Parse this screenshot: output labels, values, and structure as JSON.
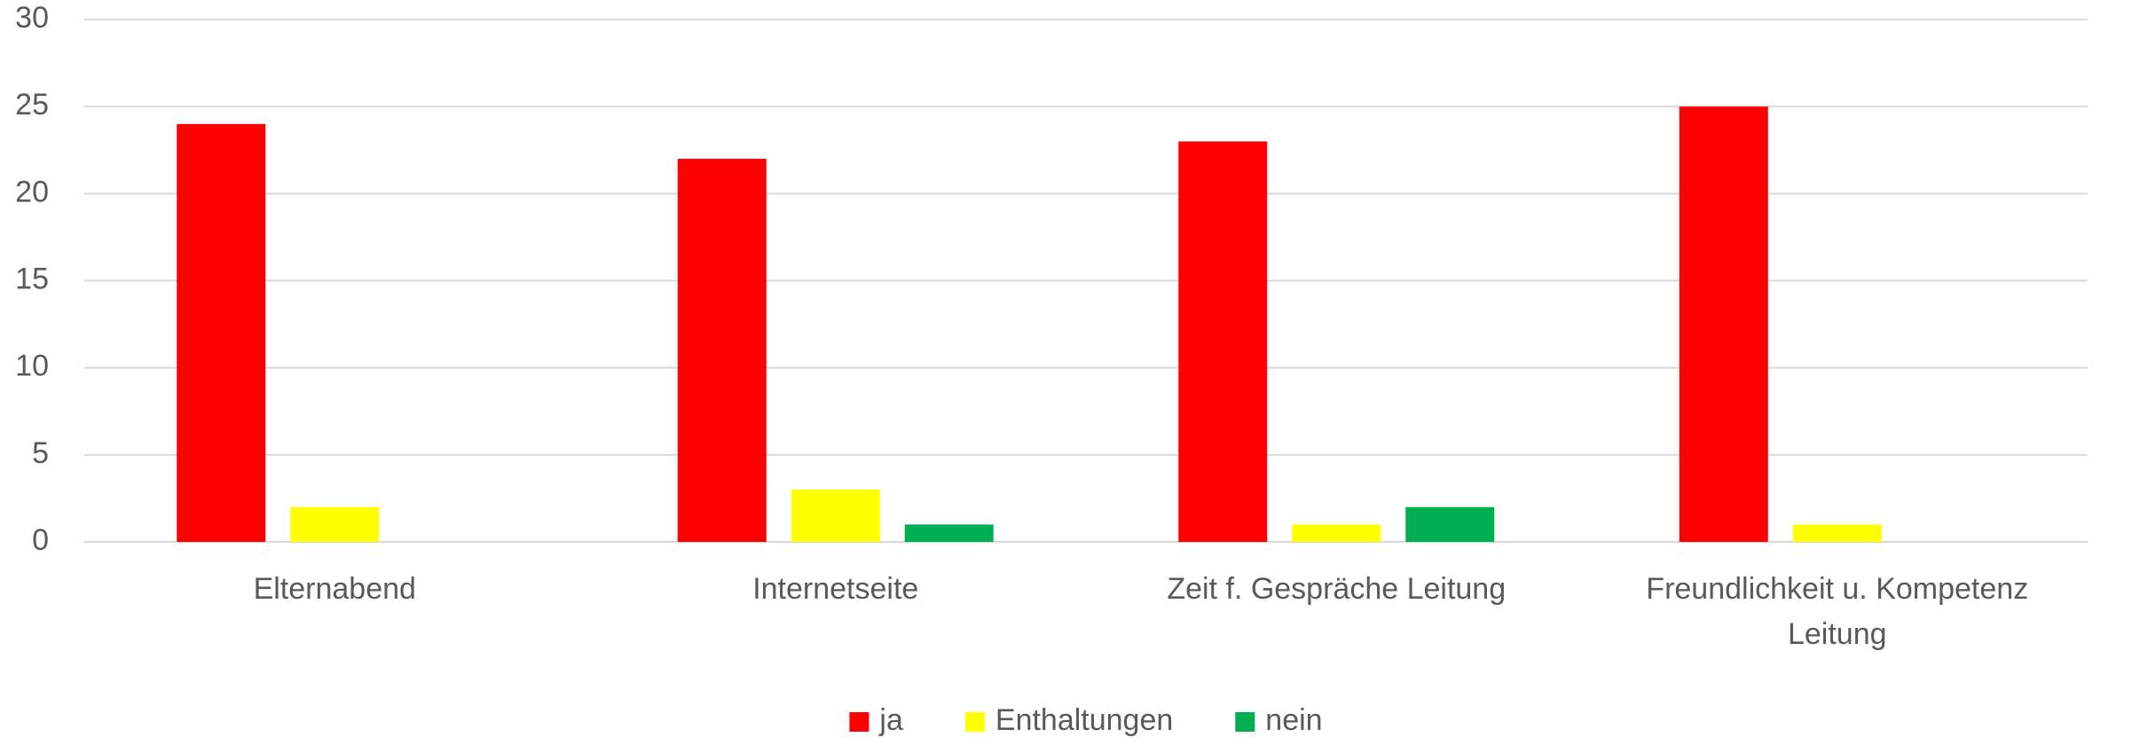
{
  "chart_data": {
    "type": "bar",
    "categories": [
      "Elternabend",
      "Internetseite",
      "Zeit f. Gespräche Leitung",
      "Freundlichkeit u. Kompetenz Leitung"
    ],
    "series": [
      {
        "name": "ja",
        "color": "#ff0000",
        "values": [
          24,
          22,
          23,
          25
        ]
      },
      {
        "name": "Enthaltungen",
        "color": "#ffff00",
        "values": [
          2,
          3,
          1,
          1
        ]
      },
      {
        "name": "nein",
        "color": "#00b050",
        "values": [
          0,
          1,
          2,
          0
        ]
      }
    ],
    "ylim": [
      0,
      30
    ],
    "yticks": [
      0,
      5,
      10,
      15,
      20,
      25,
      30
    ],
    "grid": true,
    "legend": "bottom"
  }
}
